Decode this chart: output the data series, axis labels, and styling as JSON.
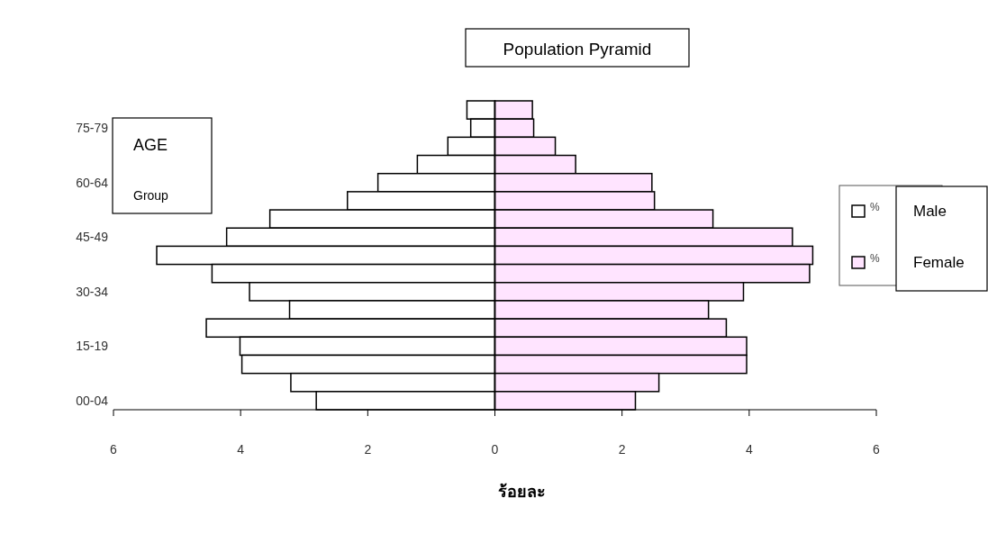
{
  "chart_data": {
    "type": "bar",
    "orientation": "horizontal",
    "stacked": true,
    "title": "Population Pyramid",
    "xlabel": "ร้อยละ",
    "categories": [
      null,
      "75-79",
      null,
      null,
      "60-64",
      null,
      null,
      "45-49",
      null,
      null,
      "30-34",
      null,
      null,
      "15-19",
      null,
      null,
      "00-04"
    ],
    "series": [
      {
        "name": "%",
        "color": "#ffffff",
        "values": [
          -0.44,
          -0.38,
          -0.74,
          -1.22,
          -1.84,
          -2.32,
          -3.54,
          -4.22,
          -5.32,
          -4.45,
          -3.86,
          -3.23,
          -4.54,
          -4.01,
          -3.98,
          -3.21,
          -2.81
        ]
      },
      {
        "name": "%",
        "color": "#ffe4ff",
        "values": [
          0.59,
          0.61,
          0.95,
          1.27,
          2.47,
          2.51,
          3.43,
          4.68,
          5.0,
          4.95,
          3.91,
          3.36,
          3.64,
          3.96,
          3.96,
          2.58,
          2.21
        ]
      }
    ],
    "xlim": [
      -6,
      6
    ],
    "xticks": [
      {
        "value": -6,
        "label": "6"
      },
      {
        "value": -4,
        "label": "4"
      },
      {
        "value": -2,
        "label": "2"
      },
      0,
      2,
      4,
      6
    ],
    "legend": "right",
    "annotations": [
      "AGE",
      "Group",
      "Male",
      "Female"
    ]
  }
}
